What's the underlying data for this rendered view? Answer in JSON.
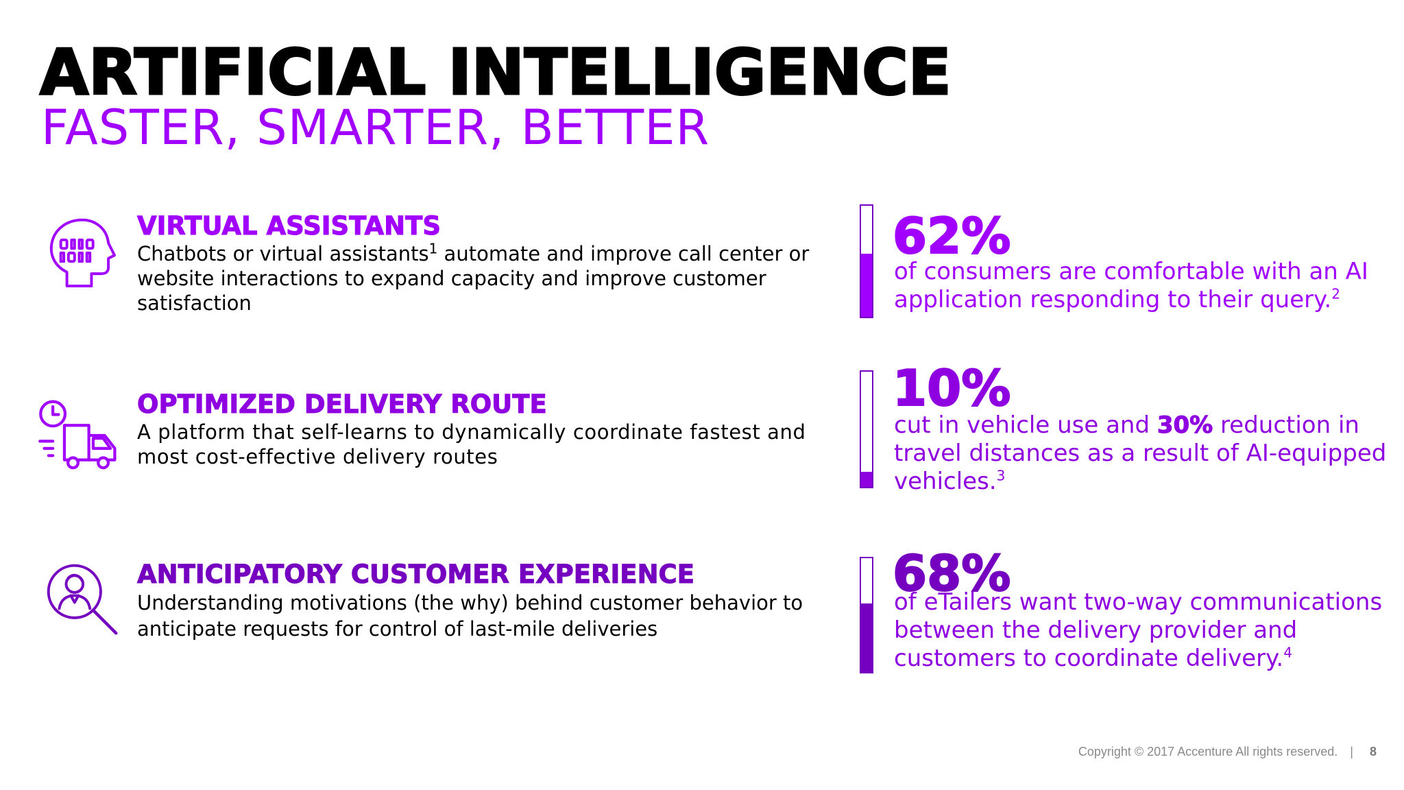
{
  "header": {
    "title": "ARTIFICIAL INTELLIGENCE",
    "subtitle": "FASTER, SMARTER, BETTER"
  },
  "colors": {
    "purple": "#a100ff",
    "deep_purple": "#7500c0",
    "mid_purple": "#8f00e0",
    "text": "#000000"
  },
  "features": [
    {
      "icon": "head-binary-icon",
      "title": "VIRTUAL ASSISTANTS",
      "desc_a": "Chatbots or virtual assistants",
      "footnote": "1",
      "desc_b": " automate and improve call center or website interactions to expand capacity and improve customer satisfaction"
    },
    {
      "icon": "delivery-truck-clock-icon",
      "title": "OPTIMIZED DELIVERY ROUTE",
      "desc": "A platform that self-learns to dynamically coordinate fastest and most cost-effective delivery routes"
    },
    {
      "icon": "customer-magnifier-icon",
      "title": "ANTICIPATORY CUSTOMER EXPERIENCE",
      "desc": "Understanding motivations (the why) behind customer behavior to anticipate requests for control of last-mile deliveries"
    }
  ],
  "stats": [
    {
      "value": "62%",
      "fill_percent": 57,
      "text": "of consumers are comfortable with an AI application responding to their query.",
      "footnote": "2"
    },
    {
      "value": "10%",
      "fill_percent": 13,
      "text_a": "cut in vehicle use and ",
      "highlight": "30%",
      "text_b": " reduction in travel distances as a result of AI-equipped vehicles.",
      "footnote": "3"
    },
    {
      "value": "68%",
      "fill_percent": 60,
      "text": "of eTailers want two-way communications between the delivery provider and customers to coordinate delivery.",
      "footnote": "4"
    }
  ],
  "footer": {
    "copyright": "Copyright © 2017 Accenture  All rights reserved.",
    "separator": "|",
    "page": "8"
  }
}
